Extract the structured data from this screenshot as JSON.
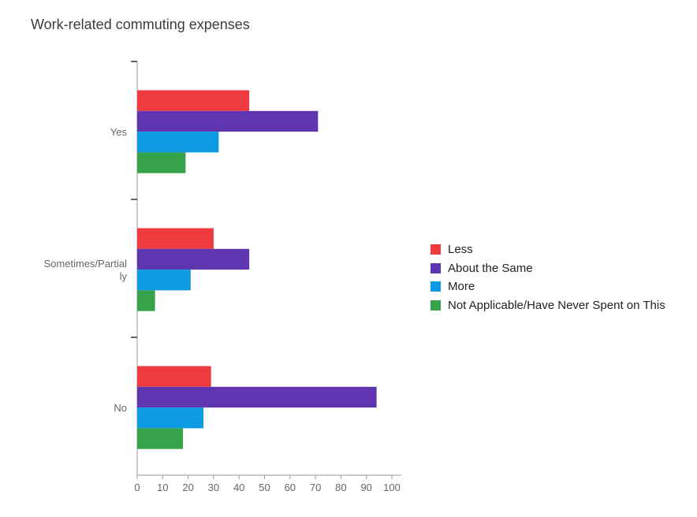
{
  "chart_data": {
    "type": "bar",
    "orientation": "horizontal",
    "title": "Work-related commuting expenses",
    "categories": [
      "Yes",
      "Sometimes/Partial\nly",
      "No"
    ],
    "series": [
      {
        "name": "Less",
        "color": "#ef3b3f",
        "values": [
          44,
          30,
          29
        ]
      },
      {
        "name": "About the Same",
        "color": "#5f35b0",
        "values": [
          71,
          44,
          94
        ]
      },
      {
        "name": "More",
        "color": "#0c9be2",
        "values": [
          32,
          21,
          26
        ]
      },
      {
        "name": "Not Applicable/Have Never Spent on This",
        "color": "#36a24a",
        "values": [
          19,
          7,
          18
        ]
      }
    ],
    "xlim": [
      0,
      100
    ],
    "xticks": [
      0,
      10,
      20,
      30,
      40,
      50,
      60,
      70,
      80,
      90,
      100
    ],
    "legend_position": "right",
    "grid": false
  }
}
